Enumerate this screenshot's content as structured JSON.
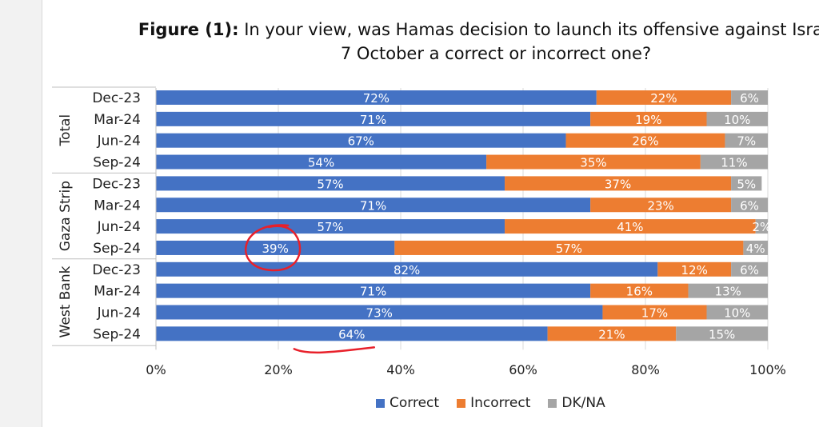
{
  "title": {
    "prefix": "Figure (1):",
    "line1": "In your view, was Hamas decision to launch its offensive against Israel o",
    "line2": "7 October a correct or incorrect one?"
  },
  "colors": {
    "correct": "#4472C4",
    "incorrect": "#ED7D31",
    "dkna": "#A5A5A5",
    "annotation": "#E8202A"
  },
  "chart_data": {
    "type": "bar",
    "orientation": "horizontal",
    "stacked": true,
    "xlim": [
      0,
      100
    ],
    "x_ticks": [
      "0%",
      "20%",
      "40%",
      "60%",
      "80%",
      "100%"
    ],
    "groups": [
      {
        "name": "Total",
        "rows": [
          {
            "label": "Dec-23",
            "values": [
              72,
              22,
              6
            ]
          },
          {
            "label": "Mar-24",
            "values": [
              71,
              19,
              10
            ]
          },
          {
            "label": "Jun-24",
            "values": [
              67,
              26,
              7
            ]
          },
          {
            "label": "Sep-24",
            "values": [
              54,
              35,
              11
            ]
          }
        ]
      },
      {
        "name": "Gaza Strip",
        "rows": [
          {
            "label": "Dec-23",
            "values": [
              57,
              37,
              5
            ]
          },
          {
            "label": "Mar-24",
            "values": [
              71,
              23,
              6
            ]
          },
          {
            "label": "Jun-24",
            "values": [
              57,
              41,
              2
            ]
          },
          {
            "label": "Sep-24",
            "values": [
              39,
              57,
              4
            ]
          }
        ]
      },
      {
        "name": "West Bank",
        "rows": [
          {
            "label": "Dec-23",
            "values": [
              82,
              12,
              6
            ]
          },
          {
            "label": "Mar-24",
            "values": [
              71,
              16,
              13
            ]
          },
          {
            "label": "Jun-24",
            "values": [
              73,
              17,
              10
            ]
          },
          {
            "label": "Sep-24",
            "values": [
              64,
              21,
              15
            ]
          }
        ]
      }
    ],
    "series": [
      {
        "name": "Correct"
      },
      {
        "name": "Incorrect"
      },
      {
        "name": "DK/NA"
      }
    ],
    "legend_position": "bottom-center",
    "grid": true
  }
}
